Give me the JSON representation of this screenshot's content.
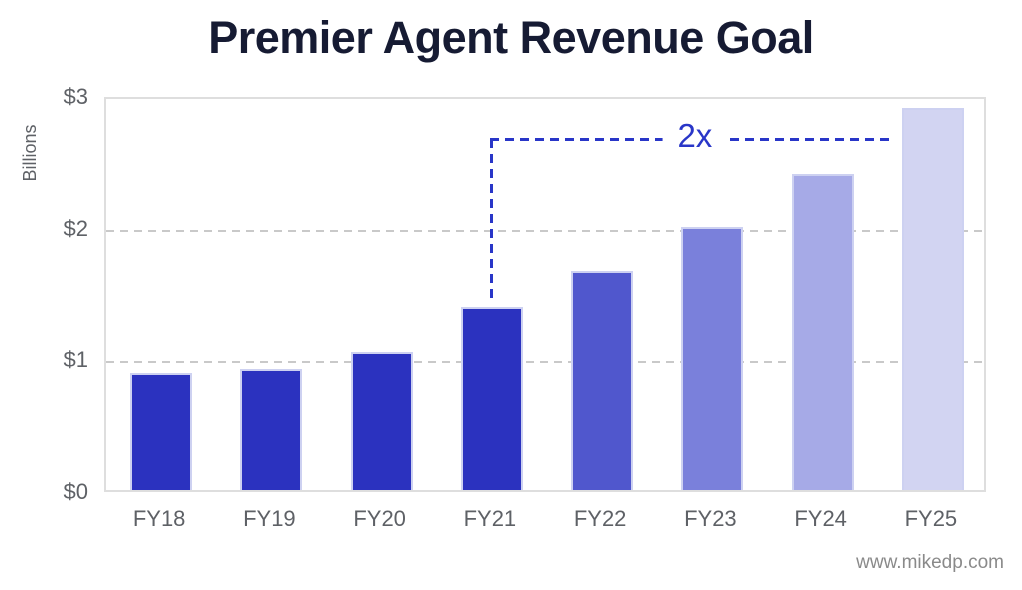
{
  "page": {
    "footer": "www.mikedp.com"
  },
  "chart_data": {
    "type": "bar",
    "title": "Premier Agent Revenue Goal",
    "xlabel": "",
    "ylabel": "Billions",
    "categories": [
      "FY18",
      "FY19",
      "FY20",
      "FY21",
      "FY22",
      "FY23",
      "FY24",
      "FY25"
    ],
    "values": [
      0.89,
      0.92,
      1.05,
      1.39,
      1.66,
      2.0,
      2.4,
      2.9
    ],
    "bar_colors": [
      "#2B32BF",
      "#2B32BF",
      "#2B32BF",
      "#2B32BF",
      "#5057CD",
      "#7A80DB",
      "#A6AAE7",
      "#D2D4F2"
    ],
    "ylim": [
      0,
      3
    ],
    "ytick_labels": [
      "$3",
      "$2",
      "$1",
      "$0"
    ],
    "ytick_values": [
      3,
      2,
      1,
      0
    ],
    "grid": "horizontal dashed at $1 and $2",
    "legend": "none",
    "colors": {
      "title_text": "#161B33",
      "axis_text": "#5E6166",
      "gridline": "#C9C9C9",
      "plot_border": "#DEDEDE",
      "annotation_blue": "#2936C8",
      "footer_text": "#8A8A8A"
    },
    "annotation": {
      "label": "2x",
      "from_category": "FY21",
      "to_category": "FY25",
      "meaning": "goal of doubling revenue from FY21 to FY25",
      "color": "#2936C8"
    }
  }
}
